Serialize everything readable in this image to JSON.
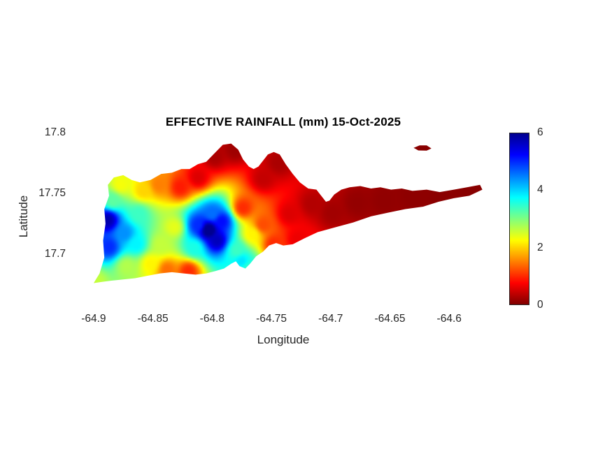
{
  "figure": {
    "background_color": "#ffffff"
  },
  "chart_data": {
    "type": "heatmap",
    "title": "EFFECTIVE RAINFALL (mm) 15-Oct-2025",
    "date": "15-Oct-2025",
    "units": "mm",
    "xlabel": "Longitude",
    "ylabel": "Latitude",
    "xlim": [
      -64.92,
      -64.56
    ],
    "ylim": [
      17.655,
      17.8
    ],
    "x_ticks": [
      -64.9,
      -64.85,
      -64.8,
      -64.75,
      -64.7,
      -64.65,
      -64.6
    ],
    "y_ticks": [
      17.7,
      17.75,
      17.8
    ],
    "grid": false,
    "legend": false,
    "colorbar": {
      "min": 0,
      "max": 6,
      "ticks": [
        0,
        2,
        4,
        6
      ],
      "position": "right"
    },
    "colormap": {
      "name": "jet-reversed (0 mm = dark red, 6 mm = dark blue)",
      "stops": [
        {
          "t": 0,
          "c": "#00008f"
        },
        {
          "t": 0.125,
          "c": "#0000ff"
        },
        {
          "t": 0.375,
          "c": "#00ffff"
        },
        {
          "t": 0.625,
          "c": "#ffff00"
        },
        {
          "t": 0.875,
          "c": "#ff0000"
        },
        {
          "t": 1,
          "c": "#800000"
        }
      ]
    },
    "island_outline": [
      [
        -64.9,
        17.676
      ],
      [
        -64.895,
        17.684
      ],
      [
        -64.891,
        17.697
      ],
      [
        -64.892,
        17.711
      ],
      [
        -64.89,
        17.725
      ],
      [
        -64.891,
        17.737
      ],
      [
        -64.887,
        17.748
      ],
      [
        -64.888,
        17.757
      ],
      [
        -64.883,
        17.763
      ],
      [
        -64.875,
        17.765
      ],
      [
        -64.868,
        17.761
      ],
      [
        -64.861,
        17.759
      ],
      [
        -64.852,
        17.761
      ],
      [
        -64.843,
        17.766
      ],
      [
        -64.834,
        17.767
      ],
      [
        -64.826,
        17.77
      ],
      [
        -64.819,
        17.77
      ],
      [
        -64.812,
        17.774
      ],
      [
        -64.805,
        17.776
      ],
      [
        -64.799,
        17.782
      ],
      [
        -64.791,
        17.79
      ],
      [
        -64.784,
        17.791
      ],
      [
        -64.778,
        17.786
      ],
      [
        -64.774,
        17.778
      ],
      [
        -64.769,
        17.772
      ],
      [
        -64.765,
        17.77
      ],
      [
        -64.761,
        17.772
      ],
      [
        -64.757,
        17.777
      ],
      [
        -64.753,
        17.782
      ],
      [
        -64.748,
        17.784
      ],
      [
        -64.743,
        17.782
      ],
      [
        -64.738,
        17.774
      ],
      [
        -64.732,
        17.766
      ],
      [
        -64.726,
        17.759
      ],
      [
        -64.719,
        17.754
      ],
      [
        -64.712,
        17.753
      ],
      [
        -64.708,
        17.748
      ],
      [
        -64.704,
        17.743
      ],
      [
        -64.701,
        17.744
      ],
      [
        -64.697,
        17.749
      ],
      [
        -64.691,
        17.753
      ],
      [
        -64.684,
        17.755
      ],
      [
        -64.675,
        17.756
      ],
      [
        -64.666,
        17.754
      ],
      [
        -64.658,
        17.755
      ],
      [
        -64.649,
        17.753
      ],
      [
        -64.64,
        17.754
      ],
      [
        -64.631,
        17.752
      ],
      [
        -64.619,
        17.753
      ],
      [
        -64.608,
        17.751
      ],
      [
        -64.596,
        17.753
      ],
      [
        -64.585,
        17.755
      ],
      [
        -64.574,
        17.757
      ],
      [
        -64.572,
        17.753
      ],
      [
        -64.583,
        17.748
      ],
      [
        -64.596,
        17.746
      ],
      [
        -64.609,
        17.743
      ],
      [
        -64.622,
        17.739
      ],
      [
        -64.637,
        17.737
      ],
      [
        -64.652,
        17.734
      ],
      [
        -64.666,
        17.731
      ],
      [
        -64.681,
        17.726
      ],
      [
        -64.696,
        17.722
      ],
      [
        -64.711,
        17.718
      ],
      [
        -64.722,
        17.713
      ],
      [
        -64.732,
        17.708
      ],
      [
        -64.74,
        17.707
      ],
      [
        -64.746,
        17.709
      ],
      [
        -64.752,
        17.707
      ],
      [
        -64.757,
        17.702
      ],
      [
        -64.763,
        17.698
      ],
      [
        -64.768,
        17.692
      ],
      [
        -64.772,
        17.688
      ],
      [
        -64.777,
        17.69
      ],
      [
        -64.78,
        17.694
      ],
      [
        -64.784,
        17.692
      ],
      [
        -64.79,
        17.688
      ],
      [
        -64.797,
        17.686
      ],
      [
        -64.805,
        17.684
      ],
      [
        -64.814,
        17.683
      ],
      [
        -64.824,
        17.684
      ],
      [
        -64.834,
        17.685
      ],
      [
        -64.844,
        17.684
      ],
      [
        -64.855,
        17.682
      ],
      [
        -64.865,
        17.68
      ],
      [
        -64.875,
        17.679
      ],
      [
        -64.885,
        17.678
      ],
      [
        -64.893,
        17.677
      ]
    ],
    "small_island_outline": [
      [
        -64.63,
        17.7875
      ],
      [
        -64.625,
        17.7895
      ],
      [
        -64.619,
        17.7895
      ],
      [
        -64.615,
        17.787
      ],
      [
        -64.619,
        17.7852
      ],
      [
        -64.626,
        17.7853
      ]
    ],
    "rainfall_points_format": [
      "lon",
      "lat",
      "mm"
    ],
    "rainfall_points": [
      [
        -64.888,
        17.728,
        5.8
      ],
      [
        -64.887,
        17.706,
        5.0
      ],
      [
        -64.884,
        17.744,
        3.2
      ],
      [
        -64.874,
        17.717,
        4.4
      ],
      [
        -64.864,
        17.708,
        3.8
      ],
      [
        -64.862,
        17.733,
        3.4
      ],
      [
        -64.877,
        17.757,
        2.3
      ],
      [
        -64.858,
        17.752,
        2.0
      ],
      [
        -64.899,
        17.677,
        2.6
      ],
      [
        -64.872,
        17.69,
        2.7
      ],
      [
        -64.852,
        17.692,
        2.2
      ],
      [
        -64.838,
        17.687,
        1.4
      ],
      [
        -64.82,
        17.686,
        1.0
      ],
      [
        -64.843,
        17.708,
        2.6
      ],
      [
        -64.832,
        17.722,
        2.4
      ],
      [
        -64.845,
        17.757,
        1.5
      ],
      [
        -64.827,
        17.755,
        0.9
      ],
      [
        -64.812,
        17.763,
        0.55
      ],
      [
        -64.798,
        17.78,
        0.25
      ],
      [
        -64.781,
        17.786,
        0.18
      ],
      [
        -64.803,
        17.72,
        6.3
      ],
      [
        -64.796,
        17.711,
        5.7
      ],
      [
        -64.812,
        17.724,
        5.0
      ],
      [
        -64.792,
        17.727,
        5.2
      ],
      [
        -64.8,
        17.733,
        4.6
      ],
      [
        -64.815,
        17.705,
        3.6
      ],
      [
        -64.779,
        17.703,
        3.4
      ],
      [
        -64.775,
        17.694,
        3.9
      ],
      [
        -64.77,
        17.689,
        3.5
      ],
      [
        -64.766,
        17.716,
        2.2
      ],
      [
        -64.774,
        17.738,
        1.0
      ],
      [
        -64.757,
        17.724,
        1.2
      ],
      [
        -64.748,
        17.708,
        1.0
      ],
      [
        -64.757,
        17.762,
        0.4
      ],
      [
        -64.744,
        17.775,
        0.25
      ],
      [
        -64.735,
        17.733,
        0.55
      ],
      [
        -64.728,
        17.712,
        0.65
      ],
      [
        -64.716,
        17.741,
        0.3
      ],
      [
        -64.699,
        17.734,
        0.2
      ],
      [
        -64.678,
        17.742,
        0.12
      ],
      [
        -64.655,
        17.744,
        0.1
      ],
      [
        -64.63,
        17.748,
        0.08
      ],
      [
        -64.605,
        17.746,
        0.06
      ],
      [
        -64.58,
        17.751,
        0.05
      ],
      [
        -64.566,
        17.755,
        0.05
      ],
      [
        -64.622,
        17.789,
        0.05
      ]
    ]
  }
}
